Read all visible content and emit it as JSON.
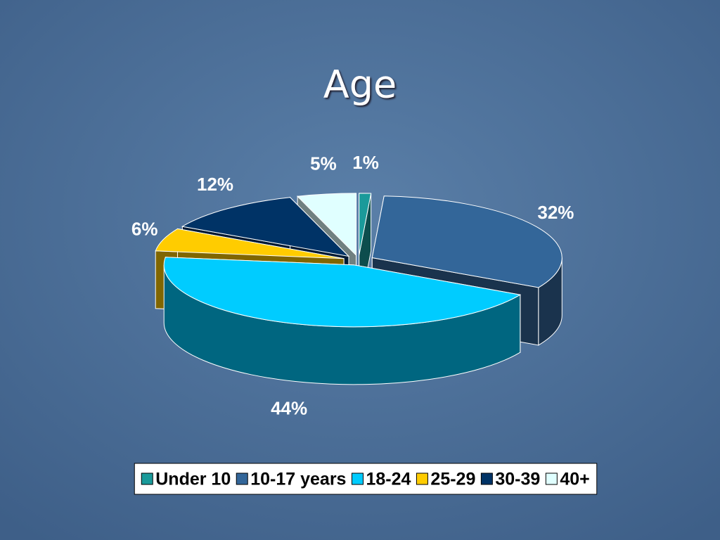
{
  "chart_data": {
    "type": "pie3d",
    "title": "Age",
    "categories": [
      "Under 10",
      "10-17 years",
      "18-24",
      "25-29",
      "30-39",
      "40+"
    ],
    "values": [
      1,
      32,
      44,
      6,
      12,
      5
    ],
    "value_labels": [
      "1%",
      "32%",
      "44%",
      "6%",
      "12%",
      "5%"
    ],
    "colors": [
      "#1a9a9a",
      "#336699",
      "#00ccff",
      "#ffcc00",
      "#003366",
      "#e0ffff"
    ],
    "legend": "bottom"
  }
}
